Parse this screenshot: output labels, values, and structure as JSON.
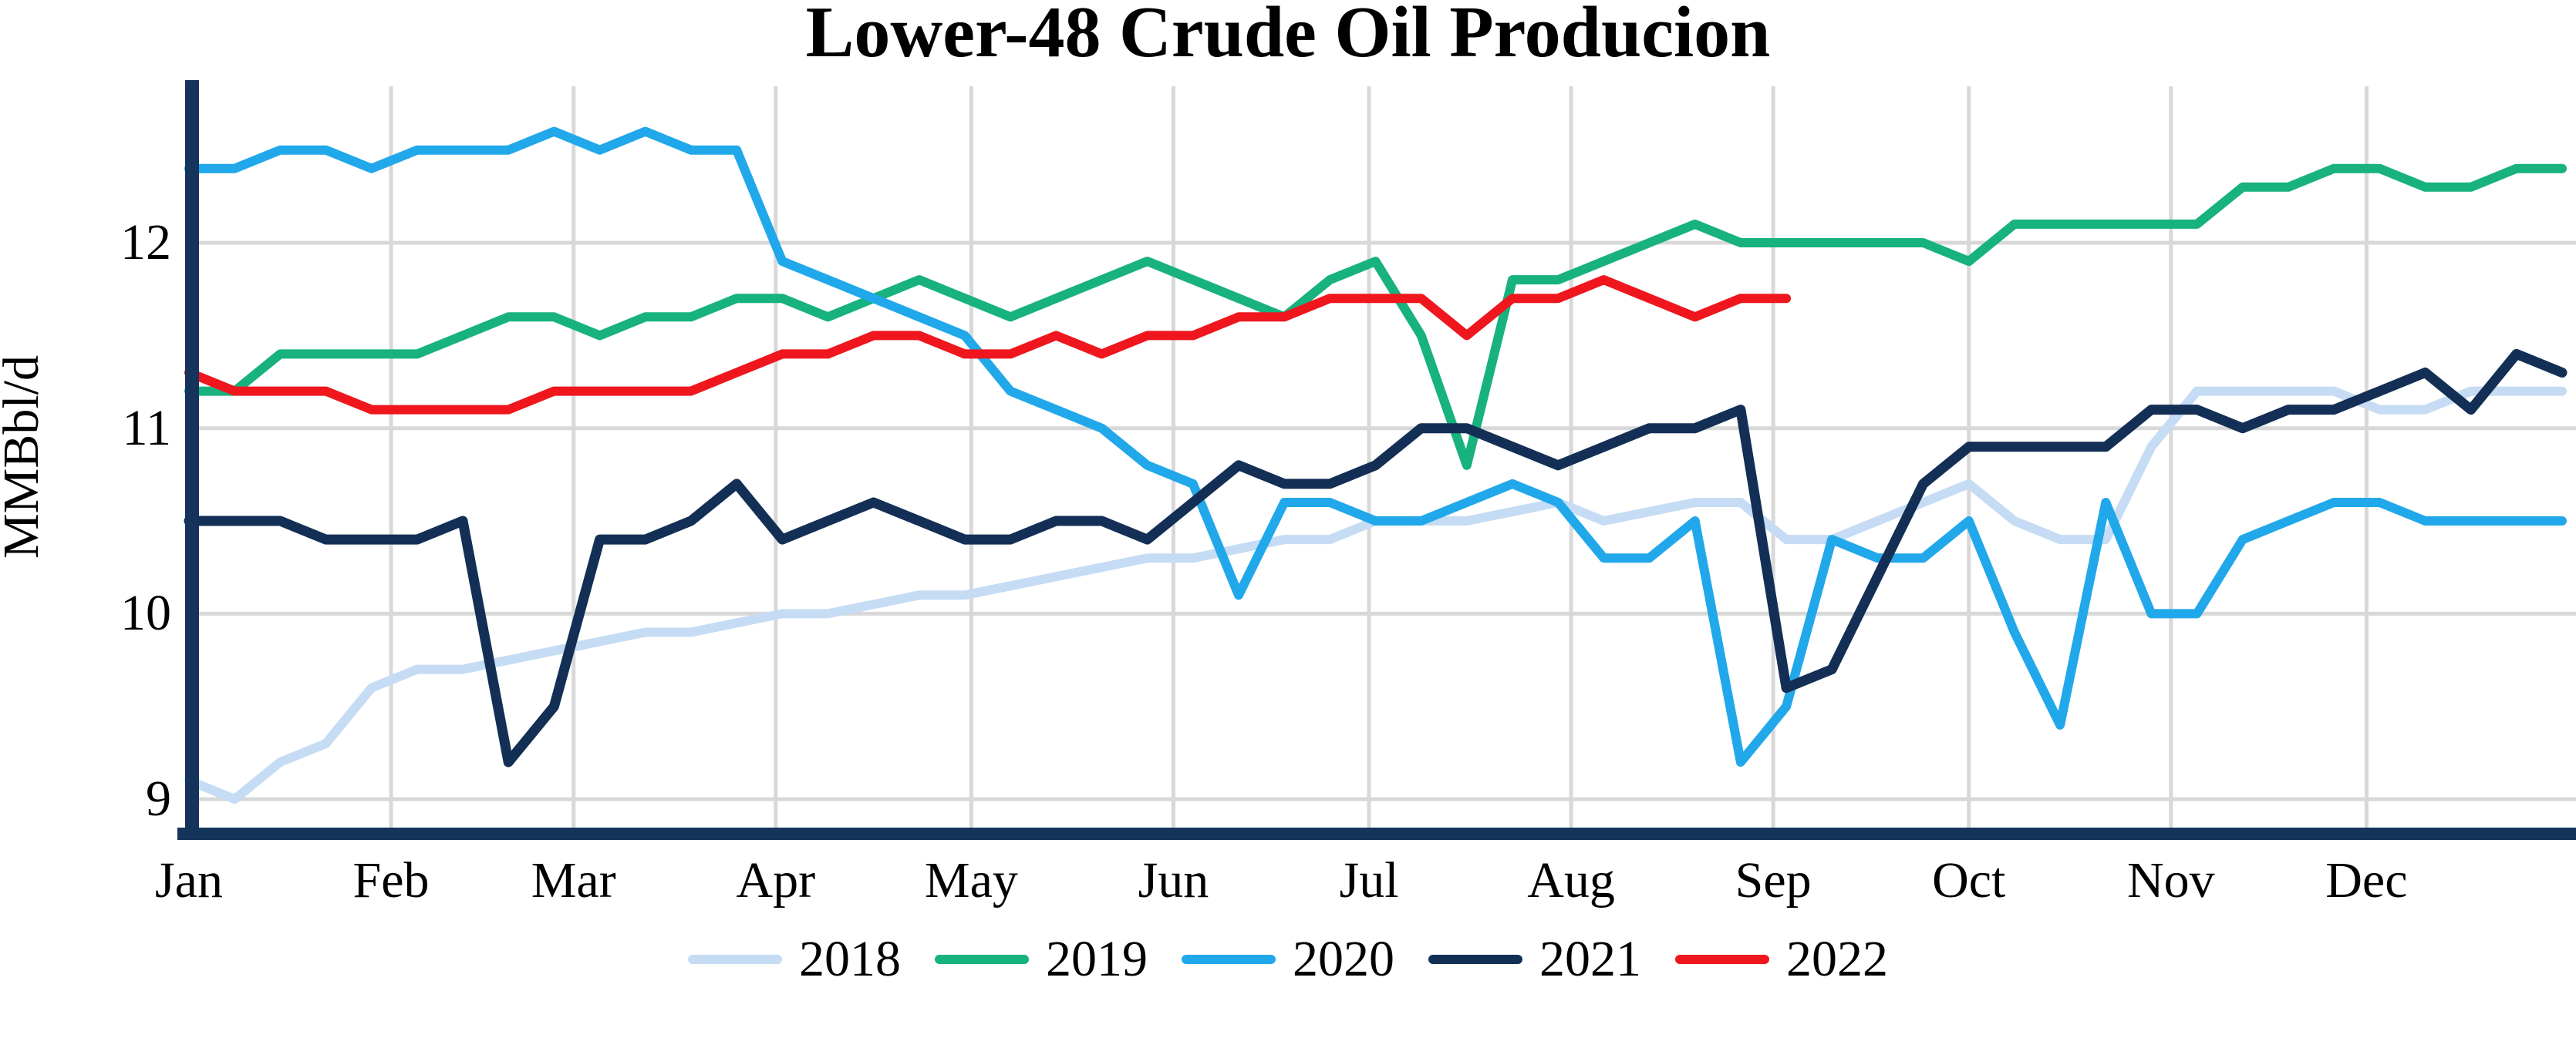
{
  "chart_data": {
    "type": "line",
    "title": "Lower-48 Crude Oil Producion",
    "ylabel": "MMBbl/d",
    "x_months": [
      "Jan",
      "Feb",
      "Mar",
      "Apr",
      "May",
      "Jun",
      "Jul",
      "Aug",
      "Sep",
      "Oct",
      "Nov",
      "Dec"
    ],
    "x_frequency": "weekly",
    "y_ticks": [
      9,
      10,
      11,
      12
    ],
    "ylim": [
      8.8,
      12.85
    ],
    "grid": true,
    "legend_position": "bottom-center",
    "axis_color": "#14345C",
    "grid_color": "#D8D8D8",
    "series": [
      {
        "name": "2018",
        "color": "#C5DCF4",
        "width": 12,
        "values": [
          9.1,
          9.0,
          9.2,
          9.3,
          9.6,
          9.7,
          9.7,
          9.75,
          9.8,
          9.85,
          9.9,
          9.9,
          9.95,
          10.0,
          10.0,
          10.05,
          10.1,
          10.1,
          10.15,
          10.2,
          10.25,
          10.3,
          10.3,
          10.35,
          10.4,
          10.4,
          10.5,
          10.5,
          10.5,
          10.55,
          10.6,
          10.5,
          10.55,
          10.6,
          10.6,
          10.4,
          10.4,
          10.5,
          10.6,
          10.7,
          10.5,
          10.4,
          10.4,
          10.9,
          11.2,
          11.2,
          11.2,
          11.2,
          11.1,
          11.1,
          11.2,
          11.2,
          11.2
        ]
      },
      {
        "name": "2019",
        "color": "#17B27E",
        "width": 12,
        "values": [
          11.2,
          11.2,
          11.4,
          11.4,
          11.4,
          11.4,
          11.5,
          11.6,
          11.6,
          11.5,
          11.6,
          11.6,
          11.7,
          11.7,
          11.6,
          11.7,
          11.8,
          11.7,
          11.6,
          11.7,
          11.8,
          11.9,
          11.8,
          11.7,
          11.6,
          11.8,
          11.9,
          11.5,
          10.8,
          11.8,
          11.8,
          11.9,
          12.0,
          12.1,
          12.0,
          12.0,
          12.0,
          12.0,
          12.0,
          11.9,
          12.1,
          12.1,
          12.1,
          12.1,
          12.1,
          12.3,
          12.3,
          12.4,
          12.4,
          12.3,
          12.3,
          12.4,
          12.4
        ]
      },
      {
        "name": "2020",
        "color": "#21A8EA",
        "width": 12,
        "values": [
          12.4,
          12.4,
          12.5,
          12.5,
          12.4,
          12.5,
          12.5,
          12.5,
          12.6,
          12.5,
          12.6,
          12.5,
          12.5,
          11.9,
          11.8,
          11.7,
          11.6,
          11.5,
          11.2,
          11.1,
          11.0,
          10.8,
          10.7,
          10.1,
          10.6,
          10.6,
          10.5,
          10.5,
          10.6,
          10.7,
          10.6,
          10.3,
          10.3,
          10.5,
          9.2,
          9.5,
          10.4,
          10.3,
          10.3,
          10.5,
          9.9,
          9.4,
          10.6,
          10.0,
          10.0,
          10.4,
          10.5,
          10.6,
          10.6,
          10.5,
          10.5,
          10.5,
          10.5
        ]
      },
      {
        "name": "2021",
        "color": "#132F55",
        "width": 13,
        "values": [
          10.5,
          10.5,
          10.5,
          10.4,
          10.4,
          10.4,
          10.5,
          9.2,
          9.5,
          10.4,
          10.4,
          10.5,
          10.7,
          10.4,
          10.5,
          10.6,
          10.5,
          10.4,
          10.4,
          10.5,
          10.5,
          10.4,
          10.6,
          10.8,
          10.7,
          10.7,
          10.8,
          11.0,
          11.0,
          10.9,
          10.8,
          10.9,
          11.0,
          11.0,
          11.1,
          9.6,
          9.7,
          10.2,
          10.7,
          10.9,
          10.9,
          10.9,
          10.9,
          11.1,
          11.1,
          11.0,
          11.1,
          11.1,
          11.2,
          11.3,
          11.1,
          11.4,
          11.3
        ]
      },
      {
        "name": "2022",
        "color": "#EF161E",
        "width": 12,
        "values": [
          11.3,
          11.2,
          11.2,
          11.2,
          11.1,
          11.1,
          11.1,
          11.1,
          11.2,
          11.2,
          11.2,
          11.2,
          11.3,
          11.4,
          11.4,
          11.5,
          11.5,
          11.4,
          11.4,
          11.5,
          11.4,
          11.5,
          11.5,
          11.6,
          11.6,
          11.7,
          11.7,
          11.7,
          11.5,
          11.7,
          11.7,
          11.8,
          11.7,
          11.6,
          11.7,
          11.7
        ]
      }
    ]
  }
}
